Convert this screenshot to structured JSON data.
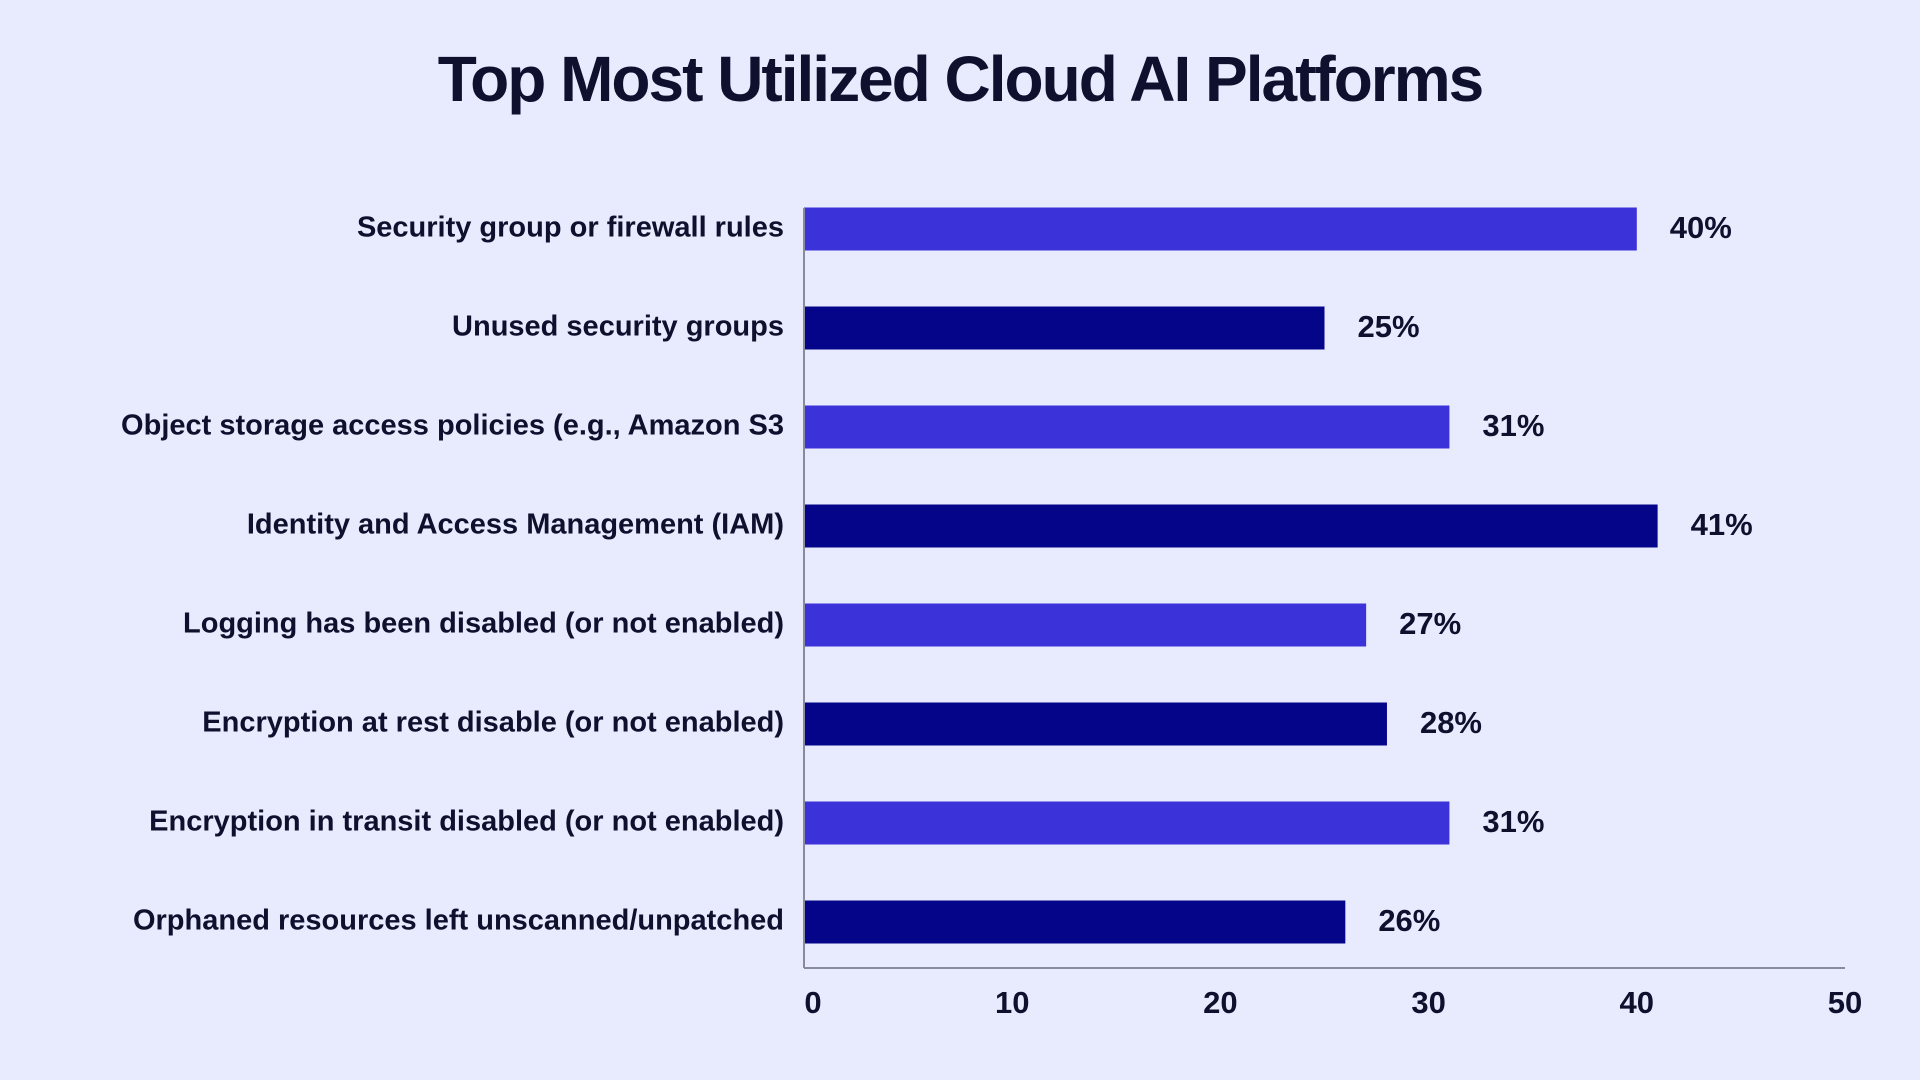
{
  "chart_data": {
    "type": "bar",
    "orientation": "horizontal",
    "title": "Top Most Utilized Cloud AI Platforms",
    "xlabel": "",
    "ylabel": "",
    "categories": [
      "Security group or firewall rules",
      "Unused security groups",
      "Object storage access policies (e.g., Amazon S3",
      "Identity and Access Management (IAM)",
      "Logging has been disabled (or not enabled)",
      "Encryption at rest disable (or not enabled)",
      "Encryption in transit disabled (or not enabled)",
      "Orphaned resources left unscanned/unpatched"
    ],
    "values": [
      40,
      25,
      31,
      41,
      27,
      28,
      31,
      26
    ],
    "value_labels": [
      "40%",
      "25%",
      "31%",
      "41%",
      "27%",
      "28%",
      "31%",
      "26%"
    ],
    "xlim": [
      0,
      50
    ],
    "xticks": [
      0,
      10,
      20,
      30,
      40,
      50
    ],
    "xtick_labels": [
      "0",
      "10",
      "20",
      "30",
      "40",
      "50"
    ],
    "grid": false,
    "legend": "none",
    "bar_colors": [
      "#3b33d9",
      "#05058a"
    ]
  },
  "colors": {
    "background": "#e8eafd",
    "text": "#0f0f2e",
    "axis": "#8a8a9a"
  }
}
